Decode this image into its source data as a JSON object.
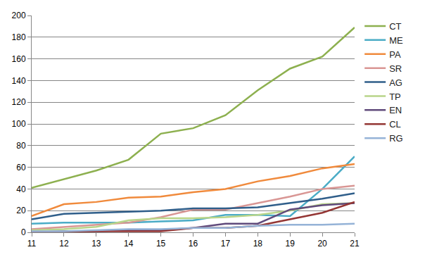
{
  "chart_data": {
    "type": "line",
    "categories": [
      "11",
      "12",
      "13",
      "14",
      "15",
      "16",
      "17",
      "18",
      "19",
      "20",
      "21"
    ],
    "series": [
      {
        "name": "CT",
        "color": "#8db04f",
        "values": [
          41,
          49,
          57,
          67,
          91,
          96,
          108,
          131,
          151,
          162,
          189
        ]
      },
      {
        "name": "ME",
        "color": "#4bacc6",
        "values": [
          8,
          9,
          9,
          9,
          10,
          11,
          16,
          16,
          15,
          40,
          70
        ]
      },
      {
        "name": "PA",
        "color": "#f08a3c",
        "values": [
          15,
          26,
          28,
          32,
          33,
          37,
          40,
          47,
          52,
          59,
          63
        ]
      },
      {
        "name": "SR",
        "color": "#d99694",
        "values": [
          3,
          5,
          7,
          9,
          14,
          21,
          21,
          27,
          33,
          40,
          43
        ]
      },
      {
        "name": "AG",
        "color": "#2f5e8a",
        "values": [
          12,
          17,
          18,
          19,
          20,
          22,
          22,
          23,
          27,
          31,
          36
        ]
      },
      {
        "name": "TP",
        "color": "#b9d58a",
        "values": [
          2,
          3,
          5,
          11,
          13,
          13,
          14,
          16,
          20,
          26,
          27
        ]
      },
      {
        "name": "EN",
        "color": "#604a7b",
        "values": [
          0,
          1,
          1,
          2,
          2,
          4,
          8,
          8,
          21,
          25,
          27
        ]
      },
      {
        "name": "CL",
        "color": "#943634",
        "values": [
          0,
          0,
          1,
          1,
          1,
          4,
          4,
          6,
          12,
          18,
          28
        ]
      },
      {
        "name": "RG",
        "color": "#95b3d7",
        "values": [
          1,
          1,
          2,
          3,
          3,
          4,
          4,
          6,
          7,
          7,
          8
        ]
      }
    ],
    "ylim": [
      0,
      200
    ],
    "yticks": [
      0,
      20,
      40,
      60,
      80,
      100,
      120,
      140,
      160,
      180,
      200
    ],
    "grid": true,
    "legend": "right"
  }
}
